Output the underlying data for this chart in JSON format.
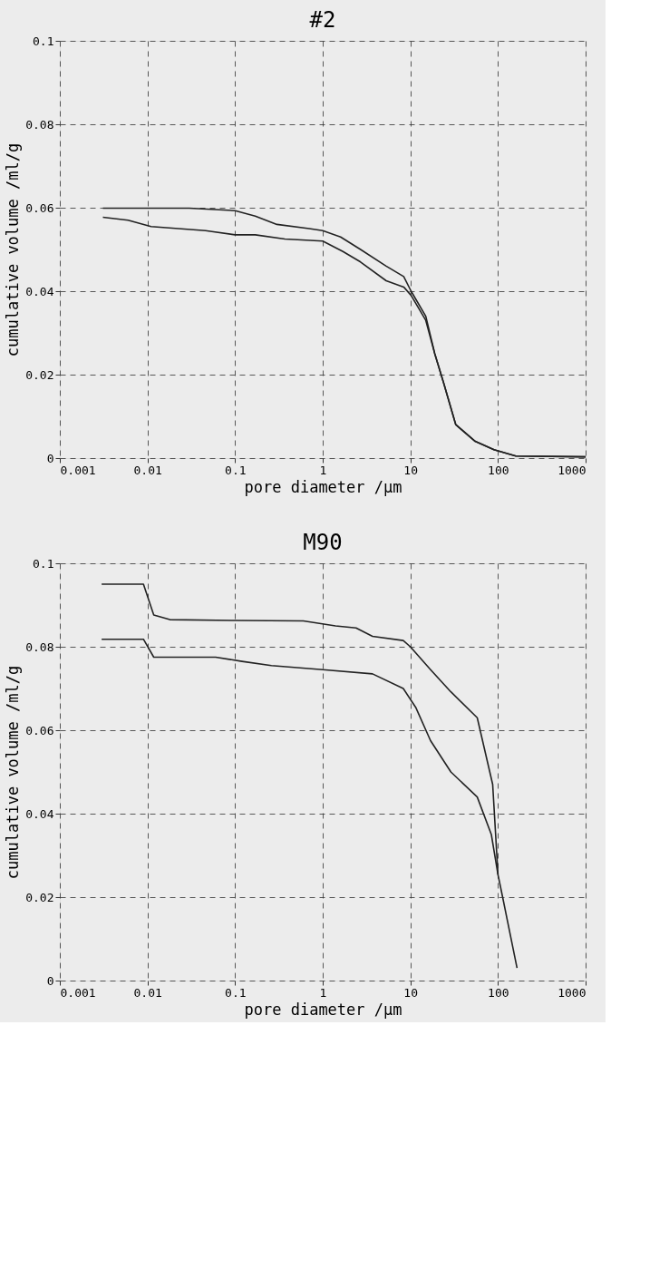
{
  "chart_data": [
    {
      "type": "line",
      "title": "#2",
      "xlabel": "pore diameter /μm",
      "ylabel": "cumulative volume /ml/g",
      "log": "x",
      "grid": true,
      "line_style": "solid",
      "marker": "none",
      "legend": false,
      "xlim": [
        0.001,
        1000
      ],
      "xticks": [
        0.001,
        0.01,
        0.1,
        1,
        10,
        100,
        1000
      ],
      "ylim": [
        0,
        0.1
      ],
      "yticks": [
        0,
        0.02,
        0.04,
        0.06,
        0.08,
        0.1
      ],
      "series": [
        {
          "color": "#222222",
          "x": [
            0.0031,
            0.03,
            0.1,
            0.17,
            0.3,
            0.7,
            1,
            1.6,
            2.7,
            5.3,
            8.4,
            10.2,
            15,
            19,
            24,
            33,
            55,
            90,
            160,
            1000
          ],
          "values": [
            0.0599,
            0.0599,
            0.0593,
            0.058,
            0.056,
            0.055,
            0.0545,
            0.053,
            0.05,
            0.046,
            0.0435,
            0.04,
            0.034,
            0.025,
            0.018,
            0.008,
            0.004,
            0.002,
            0.0005,
            0.0003
          ]
        },
        {
          "color": "#222222",
          "x": [
            0.0031,
            0.006,
            0.011,
            0.046,
            0.1,
            0.17,
            0.37,
            1,
            1.7,
            2.7,
            5.3,
            8.4,
            10.2,
            15,
            19,
            24,
            33,
            55,
            90,
            160,
            1000
          ],
          "values": [
            0.0577,
            0.057,
            0.0555,
            0.0545,
            0.0535,
            0.0535,
            0.0525,
            0.052,
            0.0495,
            0.047,
            0.0425,
            0.041,
            0.039,
            0.033,
            0.025,
            0.018,
            0.008,
            0.004,
            0.002,
            0.0005,
            0.0003
          ]
        }
      ]
    },
    {
      "type": "line",
      "title": "M90",
      "xlabel": "pore diameter /μm",
      "ylabel": "cumulative volume /ml/g",
      "log": "x",
      "grid": true,
      "line_style": "solid",
      "marker": "none",
      "legend": false,
      "xlim": [
        0.001,
        1000
      ],
      "xticks": [
        0.001,
        0.01,
        0.1,
        1,
        10,
        100,
        1000
      ],
      "ylim": [
        0,
        0.1
      ],
      "yticks": [
        0,
        0.02,
        0.04,
        0.06,
        0.08,
        0.1
      ],
      "series": [
        {
          "color": "#222222",
          "x": [
            0.003,
            0.009,
            0.0118,
            0.018,
            0.1,
            0.6,
            1.4,
            2.4,
            3.7,
            8.3,
            10,
            17,
            29,
            58,
            87,
            100,
            113,
            165
          ],
          "values": [
            0.095,
            0.095,
            0.0876,
            0.0865,
            0.0863,
            0.0862,
            0.085,
            0.0845,
            0.0825,
            0.0815,
            0.08,
            0.0745,
            0.0692,
            0.063,
            0.047,
            0.0254,
            0.02,
            0.003
          ]
        },
        {
          "color": "#222222",
          "x": [
            0.003,
            0.009,
            0.0118,
            0.06,
            0.12,
            0.26,
            1,
            3.7,
            8.3,
            11.5,
            17,
            29,
            58,
            84,
            100
          ],
          "values": [
            0.0818,
            0.0818,
            0.0775,
            0.0775,
            0.0765,
            0.0755,
            0.0745,
            0.0735,
            0.07,
            0.0655,
            0.0575,
            0.05,
            0.044,
            0.035,
            0.0254
          ]
        }
      ]
    }
  ]
}
